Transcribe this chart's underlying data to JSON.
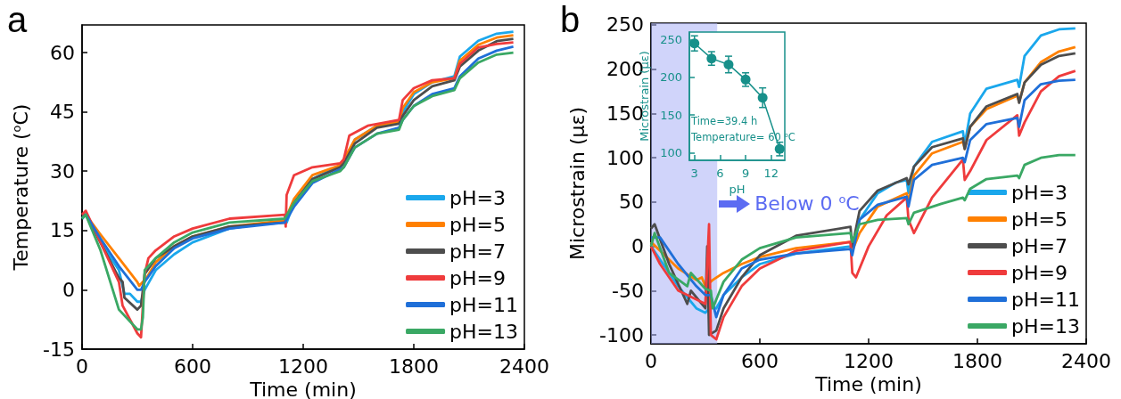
{
  "chart_data": [
    {
      "type": "line",
      "annotations": [
        "a"
      ],
      "xlabel": "Time (min)",
      "ylabel": "Temperature ($^{o}$C)",
      "xlim": [
        0,
        2400
      ],
      "ylim": [
        -15,
        67
      ],
      "xticks": [
        0,
        600,
        1200,
        1800,
        2400
      ],
      "yticks": [
        -15,
        0,
        15,
        30,
        45,
        60
      ],
      "legend": "bottom right",
      "series": [
        {
          "name": "pH=3",
          "color": "#1aa7ec",
          "x": [
            0,
            20,
            100,
            200,
            230,
            260,
            300,
            320,
            340,
            400,
            500,
            600,
            800,
            1100,
            1110,
            1150,
            1250,
            1400,
            1420,
            1480,
            1600,
            1720,
            1740,
            1800,
            1900,
            2020,
            2050,
            2150,
            2250,
            2340
          ],
          "values": [
            18,
            19,
            12,
            5,
            -1,
            -1,
            -3,
            -3,
            0,
            5,
            9,
            12,
            15.5,
            17.5,
            17,
            22,
            28,
            31.5,
            32,
            38,
            41.5,
            42.5,
            45,
            49.5,
            52.5,
            54,
            59,
            63,
            64.8,
            65.3
          ]
        },
        {
          "name": "pH=5",
          "color": "#ff8000",
          "x": [
            0,
            20,
            100,
            200,
            300,
            310,
            330,
            350,
            400,
            500,
            600,
            800,
            1100,
            1150,
            1250,
            1400,
            1420,
            1480,
            1600,
            1720,
            1740,
            1800,
            1900,
            2020,
            2050,
            2150,
            2250,
            2340
          ],
          "values": [
            19,
            19,
            14,
            8,
            2,
            1,
            2,
            3,
            7,
            11,
            13.5,
            16,
            17.5,
            23,
            29,
            31.5,
            33,
            38,
            41.5,
            42.5,
            46,
            50,
            52.5,
            53.5,
            58,
            62,
            63.8,
            64.4
          ]
        },
        {
          "name": "pH=7",
          "color": "#4d4d4d",
          "x": [
            0,
            20,
            100,
            200,
            220,
            230,
            300,
            320,
            340,
            400,
            500,
            600,
            800,
            1100,
            1150,
            1250,
            1400,
            1420,
            1480,
            1600,
            1720,
            1740,
            1800,
            1900,
            2020,
            2050,
            2150,
            2250,
            2340
          ],
          "values": [
            19,
            19,
            12,
            3,
            2,
            -2,
            -5,
            -4,
            4,
            8,
            11,
            13.5,
            16,
            17,
            22,
            28,
            31,
            32,
            37,
            41,
            42,
            44,
            48,
            51.5,
            53,
            56.5,
            60.5,
            62.9,
            63.5
          ]
        },
        {
          "name": "pH=9",
          "color": "#ef3b3c",
          "x": [
            0,
            20,
            100,
            200,
            220,
            300,
            320,
            340,
            360,
            400,
            500,
            600,
            800,
            1100,
            1105,
            1110,
            1150,
            1250,
            1400,
            1420,
            1450,
            1550,
            1720,
            1740,
            1800,
            1900,
            2020,
            2050,
            2150,
            2250,
            2340
          ],
          "values": [
            19,
            20,
            12,
            2,
            -4,
            -11,
            -12,
            4,
            8,
            10,
            13.5,
            15.5,
            18,
            19,
            16,
            24,
            29,
            31,
            32,
            33,
            39,
            41.5,
            43,
            48,
            51,
            53,
            53.5,
            57.2,
            61.3,
            62.2,
            62.6
          ]
        },
        {
          "name": "pH=11",
          "color": "#1f6fd8",
          "x": [
            0,
            20,
            100,
            200,
            300,
            320,
            340,
            400,
            500,
            600,
            800,
            1100,
            1150,
            1250,
            1400,
            1420,
            1480,
            1600,
            1720,
            1740,
            1800,
            1900,
            2020,
            2050,
            2150,
            2250,
            2340
          ],
          "values": [
            18,
            19,
            13,
            6,
            0,
            0,
            2,
            6,
            10.5,
            13,
            15.5,
            17,
            21,
            27,
            30.5,
            31,
            36,
            39.5,
            41,
            43,
            46.5,
            49.5,
            51,
            54,
            58.5,
            60.5,
            61.5
          ]
        },
        {
          "name": "pH=13",
          "color": "#3aa864",
          "x": [
            0,
            20,
            100,
            200,
            300,
            320,
            330,
            340,
            400,
            500,
            600,
            800,
            1100,
            1150,
            1250,
            1400,
            1420,
            1480,
            1600,
            1720,
            1740,
            1800,
            1900,
            2020,
            2050,
            2150,
            2250,
            2340
          ],
          "values": [
            18,
            19,
            10,
            -5,
            -10,
            -10,
            -7,
            5,
            8,
            12,
            14.5,
            17,
            18,
            22,
            27.5,
            30,
            31,
            36,
            39.5,
            40.5,
            43,
            46.5,
            49,
            50.5,
            53.5,
            57.5,
            59.5,
            60
          ]
        }
      ]
    },
    {
      "type": "line",
      "annotations": [
        "b"
      ],
      "xlabel": "Time (min)",
      "ylabel": "Microstrain (με)",
      "xlim": [
        0,
        2400
      ],
      "ylim": [
        -110,
        252
      ],
      "xticks": [
        0,
        600,
        1200,
        1800,
        2400
      ],
      "yticks": [
        -100,
        -50,
        0,
        50,
        100,
        150,
        200,
        250
      ],
      "legend": "bottom right",
      "bands": [
        {
          "axis": "x",
          "from": 0,
          "to": 365,
          "label": "Below 0 $^{o}$C",
          "color": "#aab1f5"
        }
      ],
      "series": [
        {
          "name": "pH=3",
          "color": "#1aa7ec",
          "x": [
            0,
            50,
            150,
            250,
            300,
            330,
            360,
            400,
            500,
            600,
            800,
            1100,
            1110,
            1150,
            1250,
            1350,
            1410,
            1420,
            1450,
            1550,
            1720,
            1730,
            1760,
            1850,
            2020,
            2030,
            2060,
            2150,
            2250,
            2340
          ],
          "values": [
            0,
            -15,
            -45,
            -70,
            -75,
            -68,
            -70,
            -55,
            -35,
            -20,
            -8,
            0,
            -5,
            30,
            60,
            72,
            75,
            60,
            90,
            118,
            130,
            115,
            150,
            178,
            188,
            180,
            215,
            238,
            245,
            246
          ]
        },
        {
          "name": "pH=5",
          "color": "#ff8000",
          "x": [
            0,
            50,
            150,
            250,
            280,
            300,
            340,
            400,
            500,
            600,
            800,
            1100,
            1110,
            1150,
            1250,
            1410,
            1420,
            1450,
            1550,
            1720,
            1730,
            1760,
            1850,
            2020,
            2030,
            2060,
            2150,
            2250,
            2340
          ],
          "values": [
            5,
            -5,
            -25,
            -38,
            -35,
            -45,
            -38,
            -30,
            -20,
            -12,
            -2,
            5,
            -5,
            15,
            45,
            60,
            50,
            80,
            105,
            118,
            110,
            135,
            155,
            170,
            163,
            185,
            208,
            220,
            225
          ]
        },
        {
          "name": "pH=7",
          "color": "#4d4d4d",
          "x": [
            0,
            20,
            100,
            200,
            220,
            300,
            310,
            320,
            360,
            400,
            500,
            600,
            800,
            1100,
            1110,
            1150,
            1250,
            1410,
            1420,
            1450,
            1550,
            1720,
            1730,
            1760,
            1850,
            2020,
            2030,
            2060,
            2150,
            2250,
            2340
          ],
          "values": [
            20,
            25,
            -20,
            -65,
            -50,
            -70,
            0,
            -100,
            -95,
            -70,
            -35,
            -10,
            12,
            22,
            0,
            40,
            63,
            77,
            70,
            90,
            112,
            122,
            110,
            135,
            158,
            172,
            162,
            185,
            205,
            215,
            218
          ]
        },
        {
          "name": "pH=9",
          "color": "#ef3b3c",
          "x": [
            0,
            50,
            150,
            250,
            300,
            320,
            330,
            360,
            400,
            500,
            600,
            800,
            1100,
            1110,
            1130,
            1200,
            1300,
            1410,
            1420,
            1450,
            1550,
            1720,
            1730,
            1760,
            1850,
            2020,
            2030,
            2060,
            2150,
            2250,
            2340
          ],
          "values": [
            0,
            -20,
            -50,
            -60,
            -65,
            25,
            -100,
            -105,
            -80,
            -45,
            -25,
            -5,
            5,
            -30,
            -35,
            0,
            35,
            55,
            30,
            15,
            55,
            98,
            75,
            85,
            120,
            148,
            125,
            140,
            175,
            192,
            198
          ]
        },
        {
          "name": "pH=11",
          "color": "#1f6fd8",
          "x": [
            0,
            50,
            150,
            250,
            300,
            330,
            360,
            400,
            500,
            600,
            800,
            1100,
            1110,
            1150,
            1250,
            1410,
            1420,
            1450,
            1550,
            1720,
            1730,
            1760,
            1850,
            2020,
            2030,
            2060,
            2150,
            2250,
            2340
          ],
          "values": [
            10,
            10,
            -20,
            -45,
            -55,
            -55,
            -80,
            -55,
            -25,
            -15,
            -8,
            -3,
            -10,
            30,
            47,
            56,
            45,
            75,
            92,
            100,
            95,
            120,
            138,
            145,
            135,
            165,
            183,
            187,
            188
          ]
        },
        {
          "name": "pH=13",
          "color": "#3aa864",
          "x": [
            0,
            20,
            100,
            200,
            220,
            300,
            330,
            340,
            400,
            500,
            600,
            800,
            1100,
            1110,
            1150,
            1250,
            1410,
            1420,
            1450,
            1600,
            1720,
            1730,
            1760,
            1850,
            2020,
            2030,
            2060,
            2150,
            2250,
            2340
          ],
          "values": [
            0,
            15,
            -30,
            -45,
            -30,
            -48,
            -50,
            -70,
            -40,
            -15,
            -2,
            10,
            15,
            5,
            25,
            30,
            32,
            25,
            38,
            48,
            55,
            52,
            65,
            76,
            80,
            77,
            92,
            100,
            103,
            103
          ]
        }
      ]
    },
    {
      "type": "line",
      "annotations": [
        "Time=39.4 h",
        "Temperature= 60 $^{o}$C"
      ],
      "xlabel": "pH",
      "ylabel": "Microstrain (με)",
      "xlim": [
        2.4,
        13.6
      ],
      "ylim": [
        90,
        260
      ],
      "xticks": [
        3,
        6,
        9,
        12
      ],
      "yticks": [
        100,
        150,
        200,
        250
      ],
      "marker": "circle",
      "series": [
        {
          "color": "#17908a",
          "x": [
            3,
            5,
            7,
            9,
            11,
            13
          ],
          "values": [
            245,
            225,
            217,
            197,
            173,
            105
          ],
          "errors": [
            10,
            9,
            11,
            9,
            13,
            9
          ]
        }
      ]
    }
  ]
}
